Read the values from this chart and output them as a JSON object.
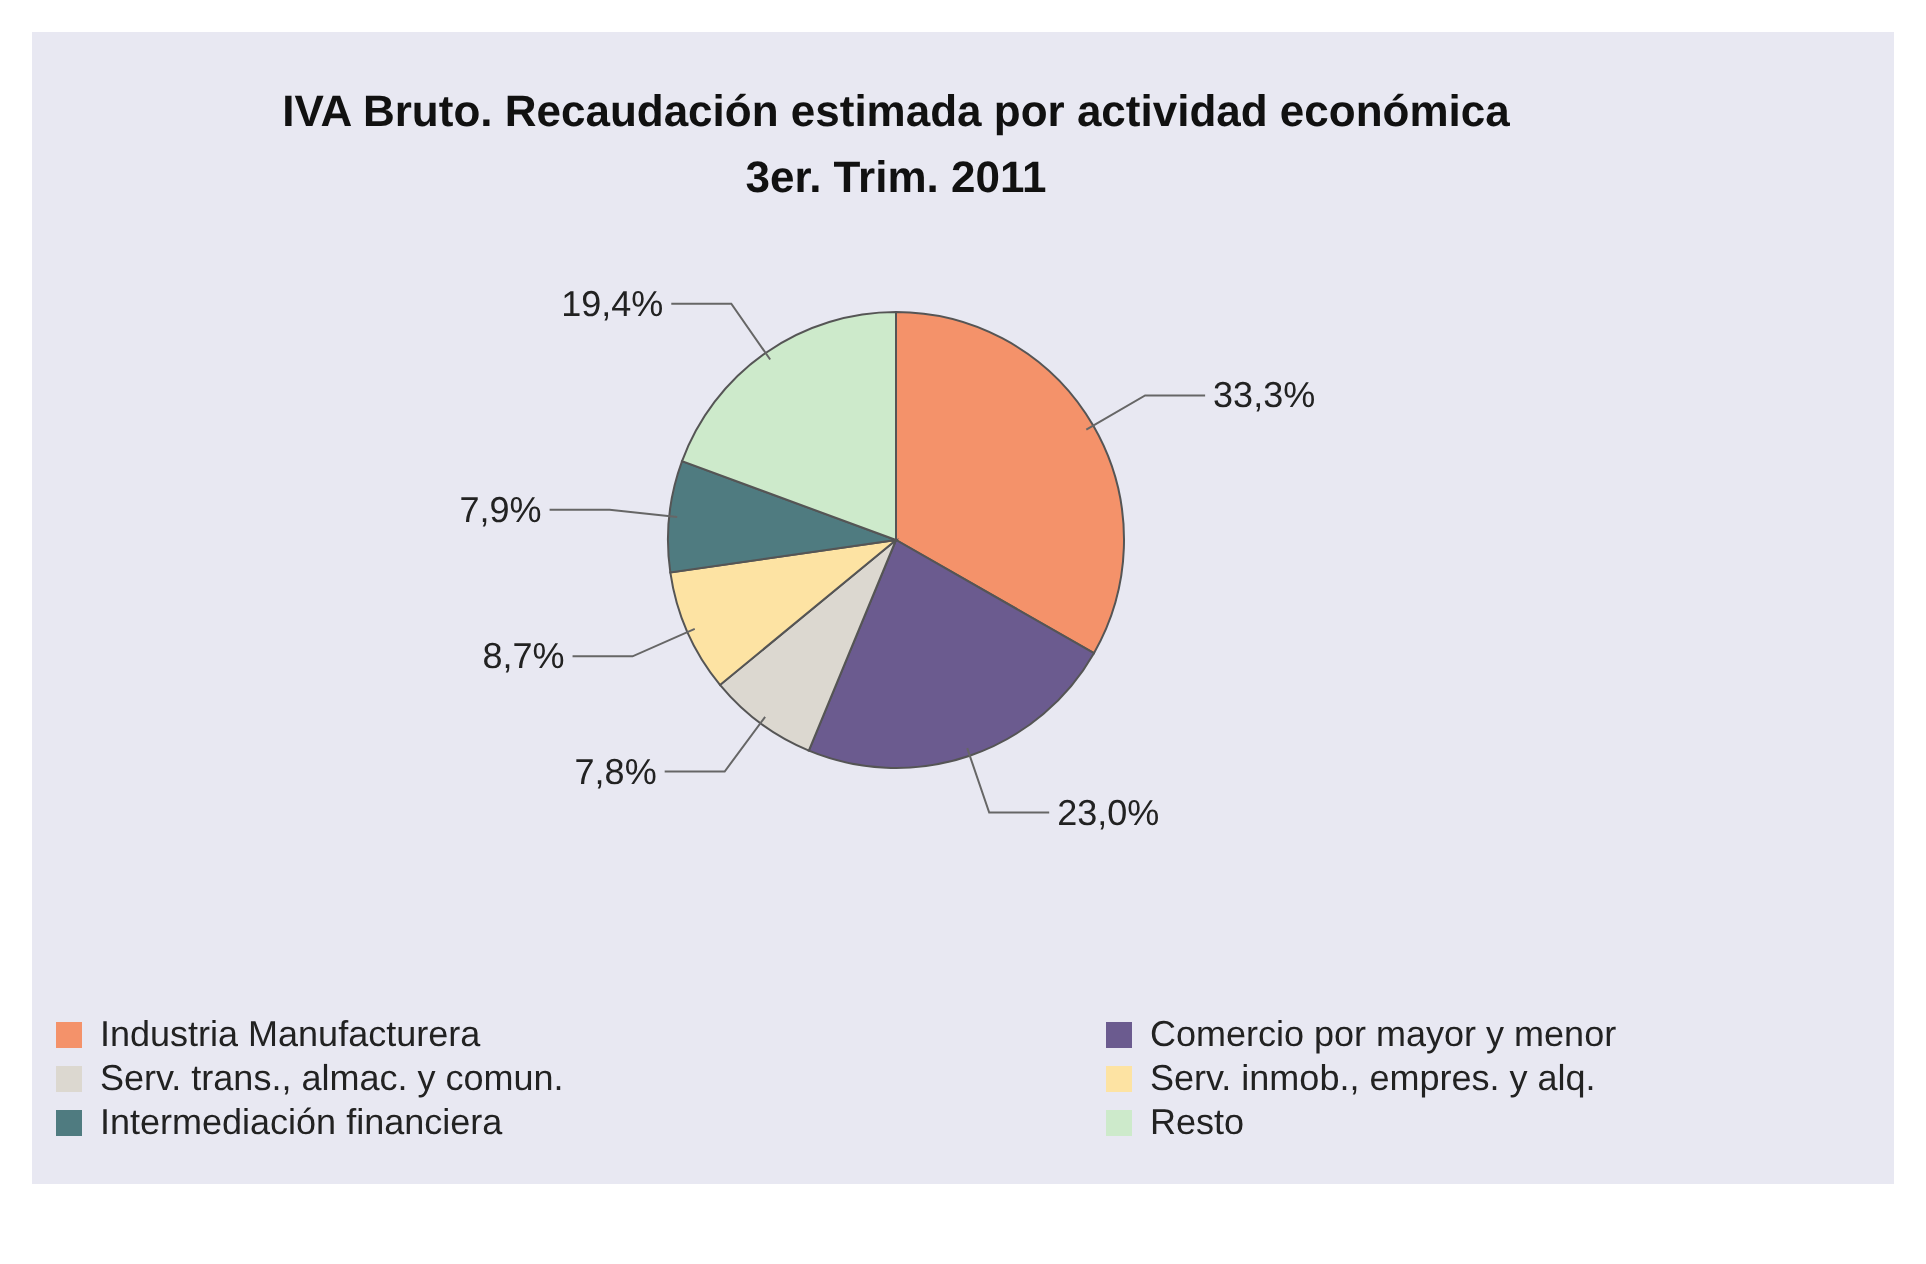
{
  "chart_data": {
    "type": "pie",
    "title": "IVA Bruto. Recaudación estimada por actividad económica",
    "subtitle": "3er. Trim. 2011",
    "categories": [
      "Industria Manufacturera",
      "Comercio por mayor y menor",
      "Serv. trans., almac. y comun.",
      "Serv. inmob., empres. y alq.",
      "Intermediación financiera",
      "Resto"
    ],
    "values": [
      33.3,
      23.0,
      7.8,
      8.7,
      7.9,
      19.4
    ],
    "value_labels": [
      "33,3%",
      "23,0%",
      "7,8%",
      "8,7%",
      "7,9%",
      "19,4%"
    ],
    "colors": [
      "#f4926a",
      "#6b5b8f",
      "#dcd8d0",
      "#fde3a3",
      "#4f7b80",
      "#cdeacb"
    ],
    "legend": "bottom"
  }
}
